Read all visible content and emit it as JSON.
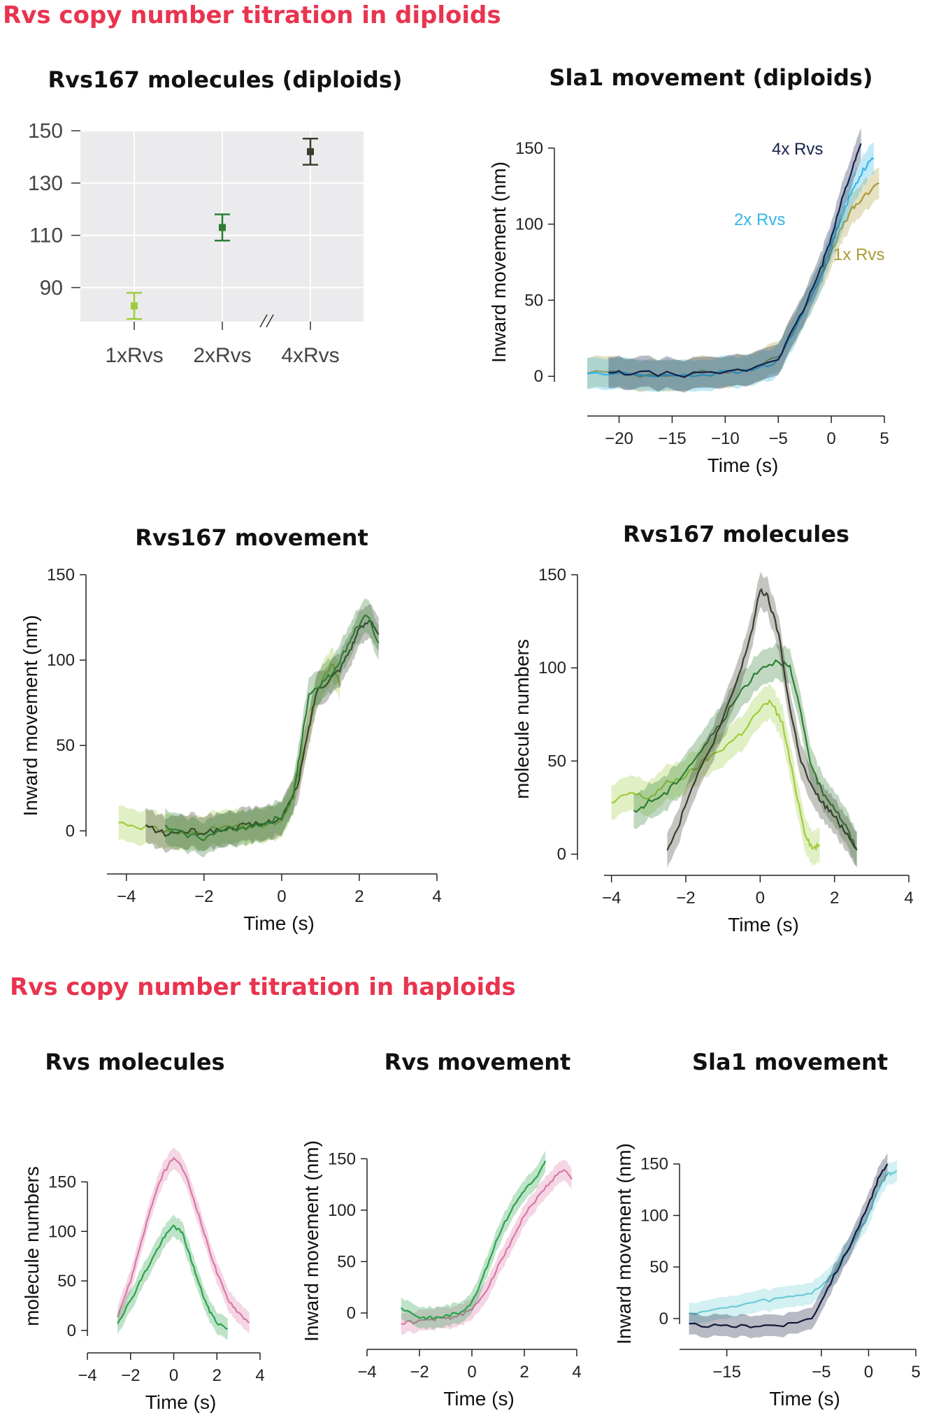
{
  "colors": {
    "section": "#e8344f",
    "diploid_1x": "#9dcc3c",
    "diploid_2x": "#2e7d32",
    "diploid_4x": "#3a3d2e",
    "sla1_1x": "#a99a34",
    "sla1_2x": "#33b6e8",
    "sla1_4x": "#14214a",
    "haploid_pink": "#d978a7",
    "haploid_green": "#2ca24c",
    "haploid_cyan": "#6cccd4",
    "haploid_navy": "#14193a"
  },
  "sections": {
    "diploids": "Rvs copy number titration in diploids",
    "haploids": "Rvs copy number titration in haploids"
  },
  "chart_data": [
    {
      "id": "rvs167-molecules-diploids",
      "type": "scatter",
      "title": "Rvs167 molecules (diploids)",
      "xlabel": "",
      "ylabel": "",
      "categories": [
        "1xRvs",
        "2xRvs",
        "4xRvs"
      ],
      "values": [
        83,
        113,
        142
      ],
      "errors": [
        5,
        5,
        5
      ],
      "ylim": [
        77,
        150
      ],
      "yticks": [
        "150",
        "130",
        "110",
        "90"
      ],
      "grid": true,
      "axis_break": true
    },
    {
      "id": "sla1-movement-diploids",
      "type": "line",
      "title": "Sla1 movement (diploids)",
      "xlabel": "Time (s)",
      "ylabel": "Inward movement (nm)",
      "xlim": [
        -23,
        5
      ],
      "ylim": [
        -10,
        160
      ],
      "xticks": [
        "−20",
        "−15",
        "−10",
        "−5",
        "0",
        "5"
      ],
      "yticks": [
        "0",
        "50",
        "100",
        "150"
      ],
      "series": [
        {
          "name": "1x Rvs",
          "x": [
            -23,
            -18,
            -13,
            -8,
            -5,
            -3,
            -1,
            0,
            1,
            2,
            3,
            4.5
          ],
          "y": [
            3,
            1,
            2,
            4,
            12,
            38,
            65,
            82,
            98,
            110,
            117,
            127
          ]
        },
        {
          "name": "2x Rvs",
          "x": [
            -23,
            -18,
            -13,
            -8,
            -5,
            -3,
            -1,
            0,
            1,
            2,
            3,
            4
          ],
          "y": [
            2,
            1,
            1,
            3,
            10,
            37,
            66,
            86,
            106,
            122,
            136,
            143
          ]
        },
        {
          "name": "4x Rvs",
          "x": [
            -21,
            -18,
            -13,
            -8,
            -5,
            -3,
            -1,
            0,
            1,
            2,
            2.8
          ],
          "y": [
            2,
            2,
            1,
            4,
            12,
            38,
            70,
            92,
            116,
            137,
            153
          ]
        }
      ]
    },
    {
      "id": "rvs167-movement",
      "type": "line",
      "title": "Rvs167 movement",
      "xlabel": "Time (s)",
      "ylabel": "Inward movement (nm)",
      "xlim": [
        -4.5,
        4
      ],
      "ylim": [
        -15,
        150
      ],
      "xticks": [
        "−4",
        "−2",
        "0",
        "2",
        "4"
      ],
      "yticks": [
        "0",
        "50",
        "100",
        "150"
      ],
      "series": [
        {
          "x": [
            -4.2,
            -3.5,
            -3,
            -2.5,
            -2,
            -1.5,
            -1,
            -0.5,
            0,
            0.3,
            0.6,
            0.9,
            1.1,
            1.3,
            1.5
          ],
          "y": [
            5,
            2,
            0,
            -2,
            0,
            2,
            2,
            3,
            5,
            20,
            50,
            80,
            92,
            98,
            85
          ]
        },
        {
          "x": [
            -3.5,
            -3,
            -2.5,
            -2,
            -1.5,
            -1,
            -0.5,
            0,
            0.4,
            0.7,
            0.9,
            1.2,
            1.5,
            1.8,
            2,
            2.3,
            2.5
          ],
          "y": [
            3,
            -2,
            0,
            -1,
            1,
            3,
            4,
            8,
            25,
            60,
            82,
            88,
            95,
            108,
            118,
            124,
            115
          ]
        },
        {
          "x": [
            -3,
            -2.5,
            -2,
            -1.5,
            -1,
            -0.5,
            0,
            0.3,
            0.5,
            0.7,
            1,
            1.3,
            1.6,
            1.9,
            2.2,
            2.5
          ],
          "y": [
            2,
            -2,
            -4,
            0,
            2,
            4,
            8,
            20,
            50,
            80,
            86,
            92,
            104,
            118,
            126,
            110
          ]
        }
      ]
    },
    {
      "id": "rvs167-molecules",
      "type": "line",
      "title": "Rvs167 molecules",
      "xlabel": "Time (s)",
      "ylabel": "molecule numbers",
      "xlim": [
        -4.2,
        4
      ],
      "ylim": [
        -5,
        150
      ],
      "xticks": [
        "−4",
        "−2",
        "0",
        "2",
        "4"
      ],
      "yticks": [
        "0",
        "50",
        "100",
        "150"
      ],
      "series": [
        {
          "x": [
            -4,
            -3.5,
            -3,
            -2.5,
            -2,
            -1.5,
            -1,
            -0.5,
            0,
            0.3,
            0.6,
            0.9,
            1.2,
            1.4,
            1.6
          ],
          "y": [
            27,
            33,
            30,
            38,
            42,
            50,
            57,
            65,
            78,
            82,
            70,
            40,
            12,
            3,
            5
          ]
        },
        {
          "x": [
            -3.4,
            -3,
            -2.5,
            -2,
            -1.5,
            -1,
            -0.5,
            0,
            0.5,
            0.8,
            1.1,
            1.4,
            1.7,
            2,
            2.3,
            2.6
          ],
          "y": [
            22,
            28,
            33,
            45,
            58,
            72,
            88,
            100,
            104,
            100,
            75,
            45,
            33,
            25,
            15,
            2
          ]
        },
        {
          "x": [
            -2.5,
            -2.2,
            -2,
            -1.5,
            -1,
            -0.5,
            -0.2,
            0,
            0.2,
            0.5,
            0.8,
            1.1,
            1.4,
            1.7,
            2,
            2.3,
            2.6
          ],
          "y": [
            3,
            15,
            28,
            50,
            72,
            100,
            122,
            142,
            138,
            118,
            78,
            50,
            35,
            27,
            20,
            12,
            3
          ]
        }
      ]
    },
    {
      "id": "rvs-molecules-haploid",
      "type": "line",
      "title": "Rvs molecules",
      "xlabel": "Time (s)",
      "ylabel": "molecule numbers",
      "xlim": [
        -4,
        4
      ],
      "ylim": [
        -5,
        175
      ],
      "xticks": [
        "−4",
        "−2",
        "0",
        "2",
        "4"
      ],
      "yticks": [
        "0",
        "50",
        "100",
        "150"
      ],
      "series": [
        {
          "x": [
            -2.6,
            -2,
            -1.5,
            -1,
            -0.5,
            0,
            0.5,
            1,
            1.5,
            2,
            2.5,
            3,
            3.5
          ],
          "y": [
            15,
            50,
            90,
            128,
            158,
            175,
            160,
            128,
            92,
            58,
            32,
            18,
            8
          ]
        },
        {
          "x": [
            -2.6,
            -2,
            -1.5,
            -1,
            -0.5,
            0,
            0.4,
            0.8,
            1.2,
            1.6,
            2,
            2.5
          ],
          "y": [
            8,
            30,
            52,
            72,
            92,
            106,
            98,
            72,
            45,
            22,
            8,
            2
          ]
        }
      ]
    },
    {
      "id": "rvs-movement-haploid",
      "type": "line",
      "title": "Rvs movement",
      "xlabel": "Time (s)",
      "ylabel": "Inward movement (nm)",
      "xlim": [
        -4,
        4
      ],
      "ylim": [
        -15,
        155
      ],
      "xticks": [
        "−4",
        "−2",
        "0",
        "2",
        "4"
      ],
      "yticks": [
        "0",
        "50",
        "100",
        "150"
      ],
      "series": [
        {
          "x": [
            -2.7,
            -2,
            -1.5,
            -1,
            -0.5,
            0,
            0.5,
            1,
            1.5,
            2,
            2.5,
            3,
            3.5,
            3.8
          ],
          "y": [
            -10,
            -8,
            -6,
            -5,
            -3,
            3,
            20,
            45,
            70,
            95,
            112,
            128,
            140,
            130
          ]
        },
        {
          "x": [
            -2.7,
            -2,
            -1.5,
            -1,
            -0.5,
            0,
            0.5,
            1,
            1.5,
            2,
            2.5,
            2.8
          ],
          "y": [
            5,
            -4,
            -5,
            -3,
            0,
            10,
            40,
            75,
            100,
            120,
            132,
            148
          ]
        }
      ]
    },
    {
      "id": "sla1-movement-haploid",
      "type": "line",
      "title": "Sla1 movement",
      "xlabel": "Time (s)",
      "ylabel": "Inward movement (nm)",
      "xlim": [
        -20,
        5
      ],
      "ylim": [
        -15,
        160
      ],
      "xticks": [
        "−15",
        "−5",
        "0",
        "5"
      ],
      "yticks": [
        "0",
        "50",
        "100",
        "150"
      ],
      "series": [
        {
          "x": [
            -19,
            -15,
            -12,
            -9,
            -6,
            -4,
            -2,
            0,
            1,
            2,
            3
          ],
          "y": [
            5,
            10,
            16,
            20,
            25,
            40,
            70,
            100,
            125,
            140,
            143
          ]
        },
        {
          "x": [
            -19,
            -15,
            -12,
            -9,
            -6,
            -4,
            -2,
            0,
            1,
            2
          ],
          "y": [
            -6,
            -8,
            -7,
            -6,
            0,
            35,
            70,
            110,
            135,
            150
          ]
        }
      ]
    }
  ]
}
